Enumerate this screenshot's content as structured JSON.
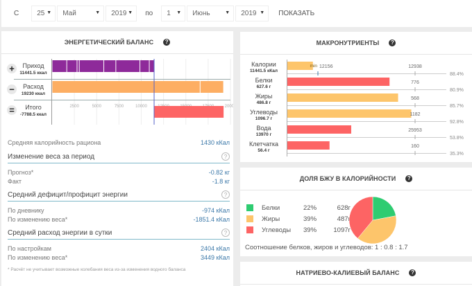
{
  "filter": {
    "from_label": "С",
    "from_day": "25",
    "from_month": "Май",
    "from_year": "2019",
    "to_label": "по",
    "to_day": "1",
    "to_month": "Июнь",
    "to_year": "2019",
    "show_button": "ПОКАЗАТЬ"
  },
  "energy": {
    "title": "ЭНЕРГЕТИЧЕСКИЙ БАЛАНС",
    "rows": [
      {
        "sign": "+",
        "label": "Приход",
        "value": "11441.5 ккал"
      },
      {
        "sign": "−",
        "label": "Расход",
        "value": "19230 ккал"
      },
      {
        "sign": "=",
        "label": "Итого",
        "value": "-7788.5 ккал"
      }
    ],
    "stats": {
      "avg_calories_label": "Средняя калорийность рациона",
      "avg_calories_value": "1430 кКал",
      "weight_change_title": "Изменение веса за период",
      "forecast_label": "Прогноз*",
      "forecast_value": "-0.82 кг",
      "fact_label": "Факт",
      "fact_value": "-1.8 кг",
      "deficit_title": "Средний дефицит/профицит энергии",
      "by_diary_label": "По дневнику",
      "by_diary_value": "-974 кКал",
      "by_weight_label": "По изменению веса*",
      "by_weight_value": "-1851.4 кКал",
      "expense_title": "Средний расход энергии в сутки",
      "by_settings_label": "По настройкам",
      "by_settings_value": "2404 кКал",
      "by_weight2_label": "По изменению веса*",
      "by_weight2_value": "3449 кКал",
      "footnote": "* Расчёт не учитывает возможные колебания веса из-за изменения водного баланса"
    }
  },
  "macro": {
    "title": "МАКРОНУТРИЕНТЫ",
    "min_label": "min"
  },
  "bju": {
    "title": "ДОЛЯ БЖУ В КАЛОРИЙНОСТИ",
    "items": [
      {
        "name": "Белки",
        "percent": "22%",
        "grams": "628г",
        "color": "#2ecc71"
      },
      {
        "name": "Жиры",
        "percent": "39%",
        "grams": "487г",
        "color": "#fdc56b"
      },
      {
        "name": "Углеводы",
        "percent": "39%",
        "grams": "1097г",
        "color": "#fd6464"
      }
    ],
    "ratio_text": "Соотношение белков, жиров и углеводов: 1 : 0.8 : 1.7"
  },
  "sodium": {
    "title": "НАТРИЕВО-КАЛИЕВЫЙ БАЛАНС"
  },
  "chart_data": [
    {
      "type": "bar",
      "title": "ЭНЕРГЕТИЧЕСКИЙ БАЛАНС",
      "orientation": "horizontal",
      "xlim": [
        0,
        20000
      ],
      "xticks": [
        2500,
        5000,
        7500,
        10000,
        12500,
        15000,
        17500,
        20000
      ],
      "grid": true,
      "reference_line": 11441.5,
      "series": [
        {
          "name": "Приход",
          "total": 11441.5,
          "color": "#8e2a9a",
          "segments": [
            1650,
            1150,
            250,
            2750,
            1350,
            2700,
            1050,
            541.5
          ]
        },
        {
          "name": "Расход",
          "total": 19230,
          "color": "#fdae63",
          "segments": [
            16600,
            2630
          ]
        },
        {
          "name": "Итого",
          "total": -7788.5,
          "color": "#fd6464",
          "start": 11441.5,
          "end": 19230
        }
      ]
    },
    {
      "type": "bar",
      "title": "МАКРОНУТРИЕНТЫ",
      "orientation": "horizontal",
      "categories": [
        "Калории",
        "Белки",
        "Жиры",
        "Углеводы",
        "Вода",
        "Клетчатка"
      ],
      "values": [
        11441.5,
        627.6,
        486.8,
        1096.7,
        13970,
        56.4
      ],
      "value_labels": [
        "11441.5 кКал",
        "627.6 г",
        "486.8 г",
        "1096.7 г",
        "13970 г",
        "56.4 г"
      ],
      "targets": [
        12938,
        776,
        568,
        1182,
        25953,
        160
      ],
      "min_marker": {
        "category": "Калории",
        "value": 12156
      },
      "percents": [
        "88.4%",
        "80.9%",
        "85.7%",
        "92.8%",
        "53.8%",
        "35.3%"
      ],
      "colors": [
        "#fdc56b",
        "#fd6464",
        "#fdc56b",
        "#fdc56b",
        "#fd6464",
        "#fd6464"
      ],
      "bar_fractions": [
        0.2,
        0.8,
        0.867,
        0.97,
        0.5,
        0.33
      ]
    },
    {
      "type": "pie",
      "title": "ДОЛЯ БЖУ В КАЛОРИЙНОСТИ",
      "labels": [
        "Белки",
        "Жиры",
        "Углеводы"
      ],
      "values": [
        22,
        39,
        39
      ],
      "colors": [
        "#2ecc71",
        "#fdc56b",
        "#fd6464"
      ]
    }
  ]
}
